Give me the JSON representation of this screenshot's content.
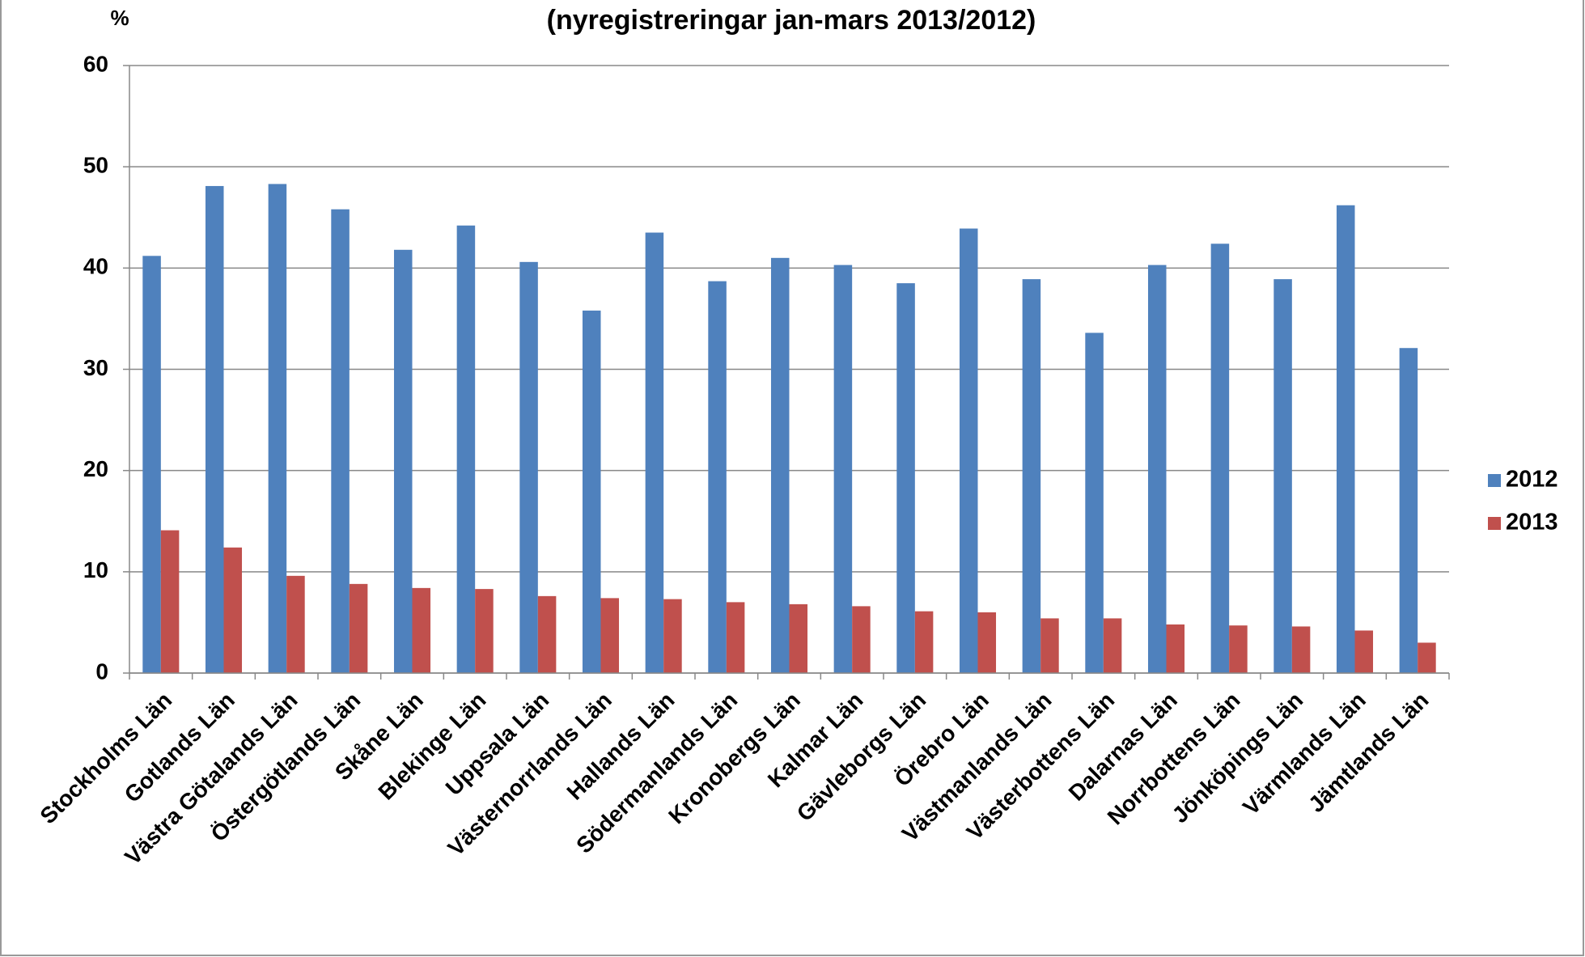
{
  "chart_data": {
    "type": "bar",
    "subtitle": "(nyregistreringar jan-mars 2013/2012)",
    "y_label": "%",
    "categories": [
      "Stockholms Län",
      "Gotlands Län",
      "Västra Götalands Län",
      "Östergötlands Län",
      "Skåne Län",
      "Blekinge Län",
      "Uppsala Län",
      "Västernorrlands Län",
      "Hallands Län",
      "Södermanlands Län",
      "Kronobergs Län",
      "Kalmar Län",
      "Gävleborgs Län",
      "Örebro Län",
      "Västmanlands Län",
      "Västerbottens Län",
      "Dalarnas Län",
      "Norrbottens Län",
      "Jönköpings Län",
      "Värmlands Län",
      "Jämtlands Län"
    ],
    "series": [
      {
        "name": "2012",
        "color": "#4f81bd",
        "values": [
          41.2,
          48.1,
          48.3,
          45.8,
          41.8,
          44.2,
          40.6,
          35.8,
          43.5,
          38.7,
          41.0,
          40.3,
          38.5,
          43.9,
          38.9,
          33.6,
          40.3,
          42.4,
          38.9,
          46.2,
          32.1
        ]
      },
      {
        "name": "2013",
        "color": "#c0504d",
        "values": [
          14.1,
          12.4,
          9.6,
          8.8,
          8.4,
          8.3,
          7.6,
          7.4,
          7.3,
          7.0,
          6.8,
          6.6,
          6.1,
          6.0,
          5.4,
          5.4,
          4.8,
          4.7,
          4.6,
          4.2,
          3.0
        ]
      }
    ],
    "ylim": [
      0,
      60
    ],
    "yticks": [
      0,
      10,
      20,
      30,
      40,
      50,
      60
    ],
    "grid": true,
    "legend": "right"
  }
}
